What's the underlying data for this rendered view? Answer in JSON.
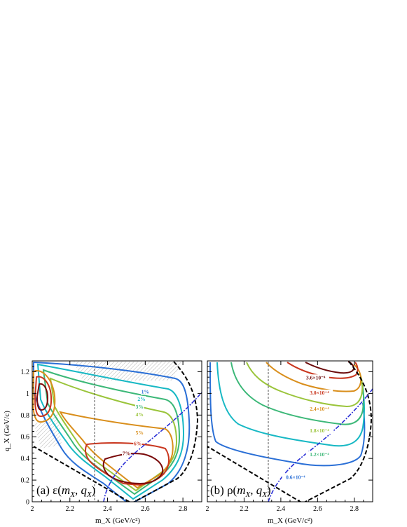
{
  "chart_data": [
    {
      "type": "contour",
      "panel_label": "(a) ε(m_X, q_X)",
      "panel_label_parts": {
        "prefix": "(a) ε(",
        "m": "m",
        "m_sub": "X",
        "sep": ", ",
        "q": "q",
        "q_sub": "X",
        "suffix": ")"
      },
      "xlabel": "m_X (GeV/c²)",
      "ylabel": "q_X (GeV/c)",
      "xlim": [
        2.0,
        2.9
      ],
      "ylim": [
        0.0,
        1.3
      ],
      "x_ticks": [
        "2",
        "2.2",
        "2.4",
        "2.6",
        "2.8"
      ],
      "y_ticks": [
        "0",
        "0.2",
        "0.4",
        "0.6",
        "0.8",
        "1",
        "1.2"
      ],
      "contour_labels": [
        {
          "text": "1%",
          "x": 2.6,
          "y": 1.0,
          "color": "#2a6fd6"
        },
        {
          "text": "2%",
          "x": 2.58,
          "y": 0.93,
          "color": "#17b8c4"
        },
        {
          "text": "3%",
          "x": 2.57,
          "y": 0.86,
          "color": "#3cb878"
        },
        {
          "text": "4%",
          "x": 2.57,
          "y": 0.79,
          "color": "#9ac43a"
        },
        {
          "text": "5%",
          "x": 2.57,
          "y": 0.62,
          "color": "#d98e1b"
        },
        {
          "text": "6%",
          "x": 2.56,
          "y": 0.52,
          "color": "#c9361e"
        },
        {
          "text": "7%",
          "x": 2.5,
          "y": 0.43,
          "color": "#7a0a0a"
        }
      ],
      "reference_line_x": 2.37
    },
    {
      "type": "contour",
      "panel_label": "(b) ρ(m_X, q_X)",
      "panel_label_parts": {
        "prefix": "(b) ρ(",
        "m": "m",
        "m_sub": "X",
        "sep": ", ",
        "q": "q",
        "q_sub": "X",
        "suffix": ")"
      },
      "xlabel": "m_X (GeV/c²)",
      "xlim": [
        2.0,
        2.9
      ],
      "ylim": [
        0.0,
        1.3
      ],
      "x_ticks": [
        "2",
        "2.2",
        "2.4",
        "2.6",
        "2.8"
      ],
      "contour_labels": [
        {
          "text": "3.6×10⁻⁴",
          "x": 2.59,
          "y": 1.13,
          "color": "#6b0a0a"
        },
        {
          "text": "3.0×10⁻⁴",
          "x": 2.61,
          "y": 0.99,
          "color": "#c9361e"
        },
        {
          "text": "2.4×10⁻⁴",
          "x": 2.61,
          "y": 0.84,
          "color": "#d98e1b"
        },
        {
          "text": "1.8×10⁻⁴",
          "x": 2.61,
          "y": 0.64,
          "color": "#9ac43a"
        },
        {
          "text": "1.2×10⁻⁴",
          "x": 2.61,
          "y": 0.42,
          "color": "#3cb878"
        },
        {
          "text": "0.6×10⁻⁴",
          "x": 2.48,
          "y": 0.21,
          "color": "#2a6fd6"
        }
      ],
      "reference_line_x": 2.37
    }
  ]
}
